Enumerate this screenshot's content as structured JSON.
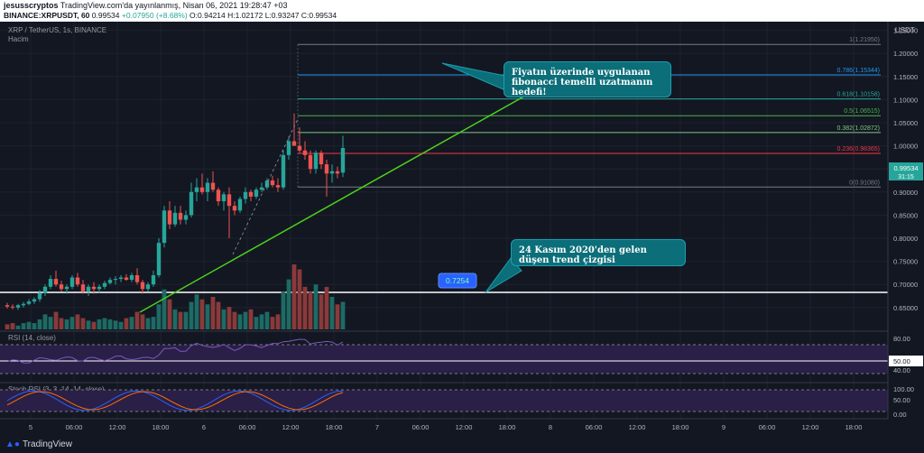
{
  "header": {
    "publisher": "jesusscryptos",
    "published_text": "TradingView.com'da yayınlanmış, Nisan 06, 2021 19:28:47 +03",
    "symbol": "BINANCE:XRPUSDT, 60",
    "last": "0.99534",
    "change": "+0.07950 (+8.68%)",
    "ohlc": "O:0.94214 H:1.02172 L:0.93247 C:0.99534"
  },
  "legend": {
    "title": "XRP / TetherUS, 1s, BINANCE",
    "volume": "Hacim",
    "rsi": "RSI (14, close)",
    "stoch": "Stoch RSI (3, 3, 14, 14, close)"
  },
  "price_axis": {
    "unit": "USDT",
    "ticks": [
      "1.25000",
      "1.20000",
      "1.15000",
      "1.10000",
      "1.05000",
      "1.00000",
      "0.95000",
      "0.90000",
      "0.85000",
      "0.80000",
      "0.75000",
      "0.70000",
      "0.65000"
    ],
    "current_price": "0.99534",
    "countdown": "31:15"
  },
  "fib_levels": [
    {
      "label": "1(1.21950)",
      "price": 1.2195,
      "color": "#787b86"
    },
    {
      "label": "0.786(1.15344)",
      "price": 1.15344,
      "color": "#2196f3"
    },
    {
      "label": "0.618(1.10158)",
      "price": 1.10158,
      "color": "#26a69a"
    },
    {
      "label": "0.5(1.06515)",
      "price": 1.06515,
      "color": "#4caf50"
    },
    {
      "label": "0.382(1.02872)",
      "price": 1.02872,
      "color": "#81c784"
    },
    {
      "label": "0.236(0.98365)",
      "price": 0.98365,
      "color": "#f23645"
    },
    {
      "label": "0(0.91080)",
      "price": 0.9108,
      "color": "#787b86"
    }
  ],
  "support": {
    "price": 0.7254,
    "label": "0.7254"
  },
  "annotations": [
    {
      "text": "Fiyatın üzerinde uygulanan fibonacci temelli uzatmanın hedefi!"
    },
    {
      "text": "24 Kasım 2020'den gelen düşen trend çizgisi"
    }
  ],
  "rsi_axis": {
    "ticks": [
      "80.00",
      "50.00",
      "40.00"
    ],
    "current": "50.00"
  },
  "stoch_axis": {
    "ticks": [
      "100.00",
      "50.00",
      "0.00"
    ]
  },
  "time_axis": [
    "5",
    "06:00",
    "12:00",
    "18:00",
    "6",
    "06:00",
    "12:00",
    "18:00",
    "7",
    "06:00",
    "12:00",
    "18:00",
    "8",
    "06:00",
    "12:00",
    "18:00",
    "9",
    "06:00",
    "12:00",
    "18:00"
  ],
  "footer": {
    "brand": "TradingView"
  },
  "colors": {
    "up": "#26a69a",
    "down": "#ef5350",
    "trend": "#4cd11b",
    "background": "#131722"
  },
  "chart_data": {
    "type": "candlestick",
    "timeframe": "1s",
    "candles": [
      [
        0.655,
        0.66,
        0.648,
        0.652
      ],
      [
        0.652,
        0.657,
        0.646,
        0.65
      ],
      [
        0.65,
        0.658,
        0.645,
        0.655
      ],
      [
        0.655,
        0.662,
        0.65,
        0.658
      ],
      [
        0.658,
        0.668,
        0.655,
        0.663
      ],
      [
        0.663,
        0.672,
        0.658,
        0.668
      ],
      [
        0.668,
        0.688,
        0.662,
        0.682
      ],
      [
        0.682,
        0.7,
        0.675,
        0.695
      ],
      [
        0.695,
        0.72,
        0.69,
        0.712
      ],
      [
        0.712,
        0.73,
        0.695,
        0.7
      ],
      [
        0.7,
        0.708,
        0.685,
        0.69
      ],
      [
        0.69,
        0.7,
        0.68,
        0.695
      ],
      [
        0.695,
        0.72,
        0.69,
        0.715
      ],
      [
        0.715,
        0.725,
        0.695,
        0.7
      ],
      [
        0.7,
        0.71,
        0.68,
        0.685
      ],
      [
        0.685,
        0.7,
        0.675,
        0.695
      ],
      [
        0.695,
        0.705,
        0.68,
        0.69
      ],
      [
        0.69,
        0.7,
        0.682,
        0.695
      ],
      [
        0.695,
        0.708,
        0.69,
        0.703
      ],
      [
        0.703,
        0.715,
        0.7,
        0.71
      ],
      [
        0.71,
        0.718,
        0.7,
        0.712
      ],
      [
        0.712,
        0.72,
        0.705,
        0.715
      ],
      [
        0.715,
        0.722,
        0.708,
        0.71
      ],
      [
        0.71,
        0.725,
        0.705,
        0.72
      ],
      [
        0.72,
        0.735,
        0.7,
        0.705
      ],
      [
        0.705,
        0.71,
        0.68,
        0.69
      ],
      [
        0.69,
        0.705,
        0.685,
        0.7
      ],
      [
        0.7,
        0.73,
        0.695,
        0.72
      ],
      [
        0.72,
        0.8,
        0.715,
        0.79
      ],
      [
        0.79,
        0.87,
        0.78,
        0.86
      ],
      [
        0.86,
        0.88,
        0.82,
        0.83
      ],
      [
        0.83,
        0.87,
        0.825,
        0.855
      ],
      [
        0.855,
        0.87,
        0.83,
        0.84
      ],
      [
        0.84,
        0.86,
        0.83,
        0.85
      ],
      [
        0.85,
        0.92,
        0.845,
        0.9
      ],
      [
        0.9,
        0.93,
        0.88,
        0.91
      ],
      [
        0.91,
        0.94,
        0.895,
        0.9
      ],
      [
        0.9,
        0.93,
        0.88,
        0.92
      ],
      [
        0.92,
        0.945,
        0.9,
        0.905
      ],
      [
        0.905,
        0.91,
        0.87,
        0.88
      ],
      [
        0.88,
        0.9,
        0.86,
        0.895
      ],
      [
        0.895,
        0.91,
        0.8,
        0.87
      ],
      [
        0.87,
        0.88,
        0.85,
        0.86
      ],
      [
        0.86,
        0.89,
        0.855,
        0.885
      ],
      [
        0.885,
        0.91,
        0.875,
        0.9
      ],
      [
        0.9,
        0.905,
        0.88,
        0.89
      ],
      [
        0.89,
        0.91,
        0.885,
        0.905
      ],
      [
        0.905,
        0.92,
        0.9,
        0.91
      ],
      [
        0.91,
        0.93,
        0.905,
        0.925
      ],
      [
        0.925,
        0.935,
        0.91,
        0.915
      ],
      [
        0.915,
        0.93,
        0.9,
        0.91
      ],
      [
        0.91,
        0.99,
        0.905,
        0.98
      ],
      [
        0.98,
        1.02,
        0.97,
        1.01
      ],
      [
        1.01,
        1.07,
        1.0,
        1.0
      ],
      [
        1.0,
        1.04,
        0.985,
        0.99
      ],
      [
        0.99,
        1.01,
        0.97,
        0.98
      ],
      [
        0.98,
        0.99,
        0.94,
        0.95
      ],
      [
        0.95,
        0.99,
        0.94,
        0.985
      ],
      [
        0.985,
        0.99,
        0.95,
        0.96
      ],
      [
        0.96,
        0.97,
        0.89,
        0.94
      ],
      [
        0.94,
        0.96,
        0.92,
        0.945
      ],
      [
        0.945,
        0.955,
        0.93,
        0.94
      ],
      [
        0.942,
        1.02172,
        0.93247,
        0.99534
      ]
    ],
    "volume": [
      4,
      5,
      3,
      5,
      6,
      5,
      8,
      12,
      10,
      14,
      9,
      8,
      10,
      12,
      9,
      7,
      6,
      8,
      9,
      8,
      7,
      6,
      9,
      10,
      14,
      12,
      9,
      10,
      20,
      32,
      24,
      16,
      14,
      14,
      22,
      28,
      24,
      20,
      26,
      22,
      16,
      18,
      14,
      12,
      14,
      16,
      10,
      12,
      14,
      10,
      12,
      30,
      40,
      52,
      48,
      34,
      30,
      36,
      28,
      34,
      26,
      20,
      22
    ],
    "xlabel": "",
    "ylabel": ""
  }
}
